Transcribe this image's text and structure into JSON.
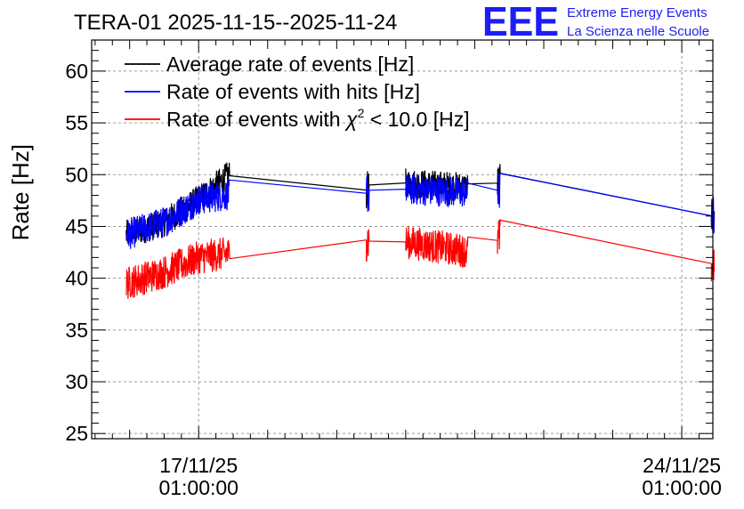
{
  "chart_data": {
    "type": "line",
    "title": "TERA-01 2025-11-15--2025-11-24",
    "xlabel": "",
    "ylabel": "Rate [Hz]",
    "ylim": [
      24.5,
      63
    ],
    "xlim": [
      -1.55,
      7.45
    ],
    "x_unit": "days relative to 17/11/25 01:00:00",
    "yticks": [
      25,
      30,
      35,
      40,
      45,
      50,
      55,
      60
    ],
    "xticks": [
      {
        "x": 0,
        "label_date": "17/11/25",
        "label_time": "01:00:00"
      },
      {
        "x": 7,
        "label_date": "24/11/25",
        "label_time": "01:00:00"
      }
    ],
    "grid": true,
    "legend_position": "top-left",
    "series": [
      {
        "name": "Average rate of events [Hz]",
        "color": "#000000",
        "points": [
          [
            -1.05,
            44.2
          ],
          [
            -0.5,
            45.4
          ],
          [
            0,
            47.6
          ],
          [
            0.45,
            50.0
          ],
          [
            2.45,
            48.5
          ],
          [
            3.0,
            49.2
          ],
          [
            3.9,
            48.8
          ],
          [
            4.35,
            49.2
          ],
          [
            7.45,
            46.0
          ]
        ]
      },
      {
        "name": "Rate of events with hits [Hz]",
        "color": "#0000ff",
        "points": [
          [
            -1.05,
            44.2
          ],
          [
            -0.5,
            45.4
          ],
          [
            0,
            47.6
          ],
          [
            0.45,
            48.1
          ],
          [
            2.45,
            48.2
          ],
          [
            3.0,
            48.6
          ],
          [
            3.9,
            48.3
          ],
          [
            4.35,
            48.5
          ],
          [
            7.45,
            46.0
          ]
        ]
      },
      {
        "name": "Rate of events with χ² < 10.0 [Hz]",
        "color": "#ff0000",
        "points": [
          [
            -1.05,
            39.5
          ],
          [
            -0.5,
            40.6
          ],
          [
            0,
            42.0
          ],
          [
            0.45,
            42.4
          ],
          [
            2.45,
            43.7
          ],
          [
            3.0,
            43.5
          ],
          [
            3.9,
            42.6
          ],
          [
            4.35,
            43.7
          ],
          [
            7.45,
            41.4
          ]
        ]
      }
    ],
    "legend": [
      {
        "label": "Average rate of events [Hz]",
        "color": "#000000"
      },
      {
        "label": "Rate of events with hits [Hz]",
        "color": "#0000ff"
      },
      {
        "label_prefix": "Rate of events with ",
        "chi": "χ",
        "sup": "2",
        "label_suffix": " < 10.0 [Hz]",
        "color": "#ff0000"
      }
    ]
  },
  "logo": {
    "mark": "EEE",
    "line1": "Extreme Energy Events",
    "line2": "La Scienza nelle Scuole"
  },
  "colors": {
    "brand": "#1d1df5"
  }
}
